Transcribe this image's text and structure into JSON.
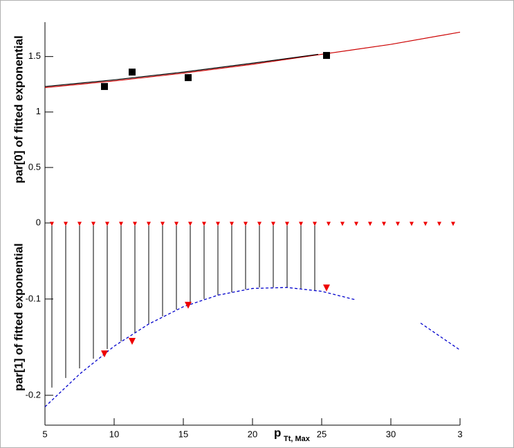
{
  "chart_data": [
    {
      "type": "line",
      "ylabel": "par[0]  of  fitted exponential",
      "xlim": [
        5,
        35
      ],
      "ylim": [
        0,
        1.81
      ],
      "yticks": [
        0,
        0.5,
        1,
        1.5
      ],
      "series": [
        {
          "style": "line",
          "color": "#cc0000",
          "x": [
            5,
            10,
            15,
            20,
            25,
            30,
            35
          ],
          "values": [
            1.22,
            1.28,
            1.35,
            1.43,
            1.52,
            1.61,
            1.72
          ]
        },
        {
          "style": "line",
          "color": "#000000",
          "x": [
            5,
            10,
            15,
            20,
            24.75
          ],
          "values": [
            1.23,
            1.29,
            1.36,
            1.44,
            1.52
          ]
        },
        {
          "style": "square",
          "color": "#000000",
          "x": [
            9.3,
            11.3,
            15.35,
            25.35
          ],
          "values": [
            1.23,
            1.36,
            1.31,
            1.51
          ]
        }
      ]
    },
    {
      "type": "line",
      "ylabel": "par[1]  of  fitted exponential",
      "xlabel": "p",
      "xlabel_sub": "Tt, Max",
      "xlim": [
        5,
        35
      ],
      "ylim": [
        -0.231,
        -0.021
      ],
      "yticks": [
        -0.2,
        -0.1
      ],
      "xticks": [
        5,
        10,
        15,
        20,
        25,
        30,
        {
          "value": 35,
          "label": "3"
        }
      ],
      "series": [
        {
          "style": "drop",
          "color": "#000000",
          "x": [
            5.5,
            6.5,
            7.5,
            8.5,
            9.5,
            10.5,
            11.5,
            12.5,
            13.5,
            14.5,
            15.5,
            16.5,
            17.5,
            18.5,
            19.5,
            20.5,
            21.5,
            22.5,
            23.5,
            24.5
          ],
          "values": [
            -0.192,
            -0.182,
            -0.172,
            -0.162,
            -0.152,
            -0.144,
            -0.135,
            -0.126,
            -0.118,
            -0.111,
            -0.105,
            -0.1,
            -0.096,
            -0.093,
            -0.09,
            -0.088,
            -0.088,
            -0.088,
            -0.089,
            -0.091
          ]
        },
        {
          "style": "dashed",
          "color": "#0000cc",
          "x": [
            5,
            7.5,
            10,
            12.5,
            15,
            17.5,
            20,
            22.5,
            25,
            27.5,
            30,
            32.15,
            35
          ],
          "values": [
            -0.212,
            -0.178,
            -0.149,
            -0.126,
            -0.108,
            -0.096,
            -0.089,
            -0.088,
            -0.092,
            -0.101,
            null,
            -0.125,
            -0.153
          ]
        },
        {
          "style": "small-triangle",
          "color": "#ee0000",
          "x": [
            5.5,
            6.5,
            7.5,
            8.5,
            9.5,
            10.5,
            11.5,
            12.5,
            13.5,
            14.5,
            15.5,
            16.5,
            17.5,
            18.5,
            19.5,
            20.5,
            21.5,
            22.5,
            23.5,
            24.5,
            25.5,
            26.5,
            27.5,
            28.5,
            29.5,
            30.5,
            31.5,
            32.5,
            33.5,
            34.5
          ],
          "values": [
            -0.022,
            -0.022,
            -0.022,
            -0.022,
            -0.022,
            -0.022,
            -0.022,
            -0.022,
            -0.022,
            -0.022,
            -0.022,
            -0.022,
            -0.022,
            -0.022,
            -0.022,
            -0.022,
            -0.022,
            -0.022,
            -0.022,
            -0.022,
            -0.022,
            -0.022,
            -0.022,
            -0.022,
            -0.022,
            -0.022,
            -0.022,
            -0.022,
            -0.022,
            -0.022
          ]
        },
        {
          "style": "triangle",
          "color": "#ee0000",
          "x": [
            9.3,
            11.3,
            15.35,
            25.35
          ],
          "values": [
            -0.157,
            -0.144,
            -0.1065,
            -0.0885
          ]
        }
      ]
    }
  ]
}
